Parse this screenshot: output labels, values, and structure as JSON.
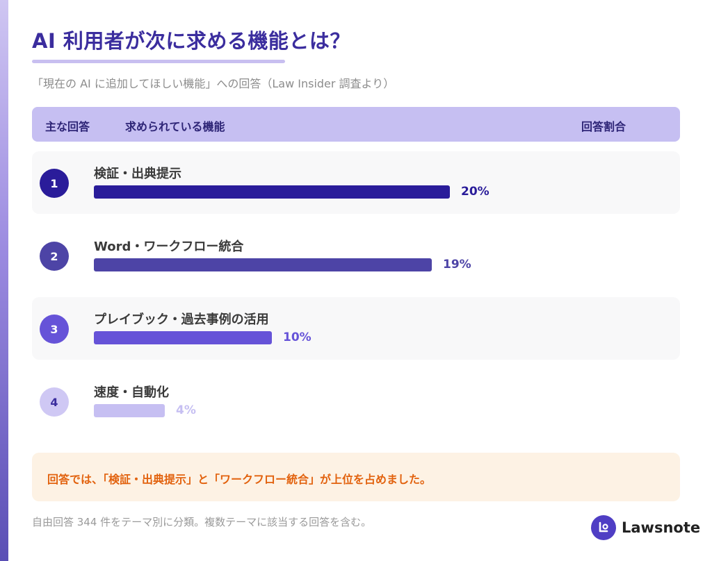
{
  "title": "AI 利用者が次に求める機能とは？",
  "subtitle": "「現在の AI に追加してほしい機能」への回答（Law Insider 調査より）",
  "table_header": {
    "rank": "主な回答",
    "feature": "求められている機能",
    "ratio": "回答割合"
  },
  "chart_data": {
    "type": "bar",
    "orientation": "horizontal",
    "title": "AI 利用者が次に求める機能とは？",
    "subtitle": "「現在の AI に追加してほしい機能」への回答（Law Insider 調査より）",
    "categories": [
      "検証・出典提示",
      "Word・ワークフロー統合",
      "プレイブック・過去事例の活用",
      "速度・自動化"
    ],
    "ranks": [
      "1",
      "2",
      "3",
      "4"
    ],
    "values": [
      20,
      19,
      10,
      4
    ],
    "value_labels": [
      "20%",
      "19%",
      "10%",
      "4%"
    ],
    "unit": "%",
    "xlim": [
      0,
      20
    ],
    "grid": false,
    "legend": "none",
    "colors": [
      "#2a1c9a",
      "#4d44a6",
      "#6653d8",
      "#c6bff2"
    ]
  },
  "callout": "回答では、「検証・出典提示」と「ワークフロー統合」が上位を占めました。",
  "footnote": "自由回答 344 件をテーマ別に分類。複数テーマに該当する回答を含む。",
  "brand": {
    "name": "Lawsnote",
    "icon": "lawsnote-logo-icon"
  }
}
